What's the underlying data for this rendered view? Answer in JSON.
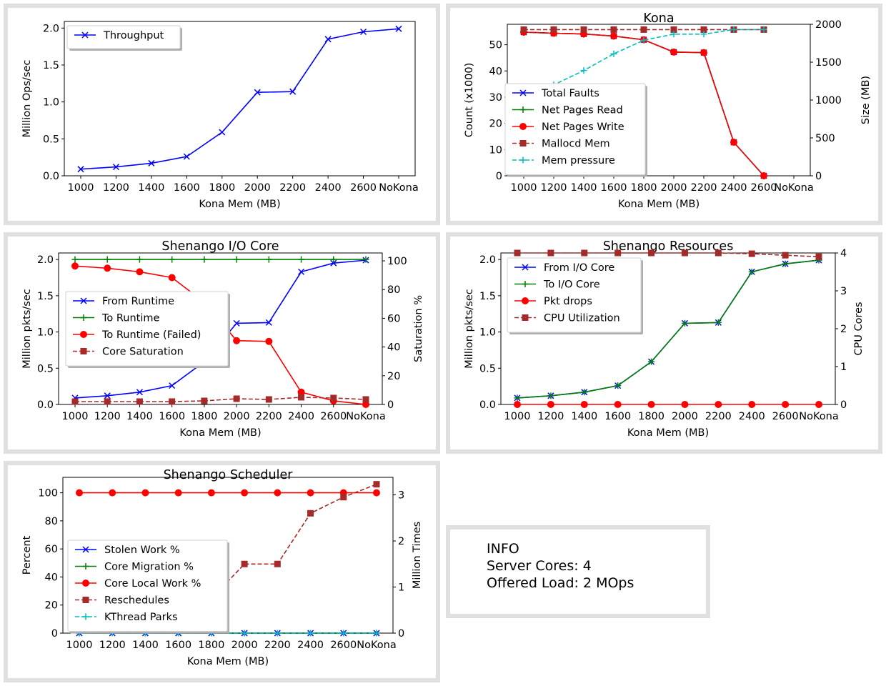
{
  "xcategories": [
    "1000",
    "1200",
    "1400",
    "1600",
    "1800",
    "2000",
    "2200",
    "2400",
    "2600",
    "NoKona"
  ],
  "chart_data": [
    {
      "id": "throughput",
      "type": "line",
      "title": "",
      "xlabel": "Kona Mem (MB)",
      "ylabel": "Million Ops/sec",
      "ylim": [
        0,
        2.09
      ],
      "yticks": [
        0,
        0.5,
        1.0,
        1.5,
        2.0
      ],
      "ytick_labels": [
        "0.0",
        "0.5",
        "1.0",
        "1.5",
        "2.0"
      ],
      "legend_position": "top-left",
      "series": [
        {
          "name": "Throughput",
          "color": "#0000ff",
          "marker": "x",
          "dash": "solid",
          "values": [
            0.09,
            0.12,
            0.17,
            0.26,
            0.59,
            1.13,
            1.14,
            1.85,
            1.95,
            1.99
          ]
        }
      ]
    },
    {
      "id": "kona",
      "type": "line",
      "title": "Kona",
      "xlabel": "Kona Mem (MB)",
      "ylabel": "Count (x1000)",
      "ylabel_right": "Size (MB)",
      "ylim": [
        0,
        57.8
      ],
      "yticks": [
        0,
        10,
        20,
        30,
        40,
        50
      ],
      "ytick_labels": [
        "0",
        "10",
        "20",
        "30",
        "40",
        "50"
      ],
      "ylim_right": [
        0,
        2000
      ],
      "yticks_right": [
        0,
        500,
        1000,
        1500,
        2000
      ],
      "ytick_labels_right": [
        "0",
        "500",
        "1000",
        "1500",
        "2000"
      ],
      "legend_position": "center-left",
      "series": [
        {
          "name": "Total Faults",
          "color": "#0000ff",
          "marker": "x",
          "dash": "solid",
          "axis": "left",
          "values": [
            54.8,
            54.4,
            54.1,
            53.3,
            51.9,
            47.2,
            47.0,
            12.8,
            0.0
          ]
        },
        {
          "name": "Net Pages Read",
          "color": "#008000",
          "marker": "+",
          "dash": "solid",
          "axis": "left",
          "values": [
            54.8,
            54.4,
            54.1,
            53.3,
            51.9,
            47.2,
            47.0,
            12.8,
            0.0
          ]
        },
        {
          "name": "Net Pages Write",
          "color": "#ff0000",
          "marker": "o",
          "dash": "solid",
          "axis": "left",
          "values": [
            54.8,
            54.4,
            54.1,
            53.3,
            51.9,
            47.2,
            47.0,
            12.8,
            0.0
          ]
        },
        {
          "name": "Mallocd Mem",
          "color": "#a52a2a",
          "marker": "s",
          "dash": "dashed",
          "axis": "right",
          "values": [
            1930,
            1930,
            1930,
            1930,
            1930,
            1930,
            1930,
            1930,
            1930
          ]
        },
        {
          "name": "Mem pressure",
          "color": "#00bfbf",
          "marker": "+",
          "dash": "dashed",
          "axis": "right",
          "values": [
            990,
            1200,
            1390,
            1610,
            1790,
            1870,
            1870,
            1930,
            1930
          ]
        }
      ]
    },
    {
      "id": "iocore",
      "type": "line",
      "title": "Shenango I/O Core",
      "xlabel": "Kona Mem (MB)",
      "ylabel": "Million pkts/sec",
      "ylabel_right": "Saturation %",
      "ylim": [
        0,
        2.09
      ],
      "yticks": [
        0,
        0.5,
        1.0,
        1.5,
        2.0
      ],
      "ytick_labels": [
        "0.0",
        "0.5",
        "1.0",
        "1.5",
        "2.0"
      ],
      "ylim_right": [
        0,
        105.5
      ],
      "yticks_right": [
        0,
        20,
        40,
        60,
        80,
        100
      ],
      "ytick_labels_right": [
        "0",
        "20",
        "40",
        "60",
        "80",
        "100"
      ],
      "legend_position": "center-left",
      "series": [
        {
          "name": "From Runtime",
          "color": "#0000ff",
          "marker": "x",
          "dash": "solid",
          "axis": "left",
          "values": [
            0.09,
            0.12,
            0.17,
            0.26,
            0.59,
            1.12,
            1.13,
            1.83,
            1.95,
            1.99
          ]
        },
        {
          "name": "To Runtime",
          "color": "#008000",
          "marker": "+",
          "dash": "solid",
          "axis": "left",
          "values": [
            2.0,
            2.0,
            2.0,
            2.0,
            2.0,
            2.0,
            2.0,
            2.0,
            2.0,
            2.0
          ]
        },
        {
          "name": "To Runtime (Failed)",
          "color": "#ff0000",
          "marker": "o",
          "dash": "solid",
          "axis": "left",
          "values": [
            1.91,
            1.88,
            1.83,
            1.75,
            1.41,
            0.88,
            0.87,
            0.17,
            0.05,
            0.0
          ]
        },
        {
          "name": "Core Saturation",
          "color": "#a52a2a",
          "marker": "s",
          "dash": "dashed",
          "axis": "right",
          "values": [
            2,
            2,
            2,
            2,
            2.5,
            4,
            3.5,
            5,
            4.5,
            3.5
          ]
        }
      ]
    },
    {
      "id": "resources",
      "type": "line",
      "title": "Shenango Resources",
      "xlabel": "Kona Mem (MB)",
      "ylabel": "Million pkts/sec",
      "ylabel_right": "CPU Cores",
      "ylim": [
        0,
        2.09
      ],
      "yticks": [
        0,
        0.5,
        1.0,
        1.5,
        2.0
      ],
      "ytick_labels": [
        "0.0",
        "0.5",
        "1.0",
        "1.5",
        "2.0"
      ],
      "ylim_right": [
        0,
        4.0
      ],
      "yticks_right": [
        0,
        1,
        2,
        3,
        4
      ],
      "ytick_labels_right": [
        "0",
        "1",
        "2",
        "3",
        "4"
      ],
      "legend_position": "top-left",
      "series": [
        {
          "name": "From I/O Core",
          "color": "#0000ff",
          "marker": "x",
          "dash": "solid",
          "axis": "left",
          "values": [
            0.09,
            0.12,
            0.17,
            0.26,
            0.59,
            1.12,
            1.13,
            1.83,
            1.94,
            1.99
          ]
        },
        {
          "name": "To I/O Core",
          "color": "#008000",
          "marker": "+",
          "dash": "solid",
          "axis": "left",
          "values": [
            0.09,
            0.12,
            0.17,
            0.26,
            0.59,
            1.12,
            1.13,
            1.83,
            1.94,
            1.99
          ]
        },
        {
          "name": "Pkt drops",
          "color": "#ff0000",
          "marker": "o",
          "dash": "solid",
          "axis": "left",
          "values": [
            0,
            0,
            0,
            0,
            0,
            0,
            0,
            0,
            0,
            0
          ]
        },
        {
          "name": "CPU Utilization",
          "color": "#a52a2a",
          "marker": "s",
          "dash": "dashed",
          "axis": "right",
          "values": [
            4.0,
            4.0,
            4.0,
            4.0,
            4.0,
            4.0,
            4.0,
            3.98,
            3.94,
            3.9
          ]
        }
      ]
    },
    {
      "id": "scheduler",
      "type": "line",
      "title": "Shenango Scheduler",
      "xlabel": "Kona Mem (MB)",
      "ylabel": "Percent",
      "ylabel_right": "Million Times",
      "ylim": [
        0,
        111
      ],
      "yticks": [
        0,
        20,
        40,
        60,
        80,
        100
      ],
      "ytick_labels": [
        "0",
        "20",
        "40",
        "60",
        "80",
        "100"
      ],
      "ylim_right": [
        0,
        3.38
      ],
      "yticks_right": [
        0,
        1,
        2,
        3
      ],
      "ytick_labels_right": [
        "0",
        "1",
        "2",
        "3"
      ],
      "legend_position": "lower-left",
      "series": [
        {
          "name": "Stolen Work %",
          "color": "#0000ff",
          "marker": "x",
          "dash": "solid",
          "axis": "left",
          "values": [
            0,
            0,
            0,
            0,
            0,
            0,
            0,
            0,
            0,
            0
          ]
        },
        {
          "name": "Core Migration %",
          "color": "#008000",
          "marker": "+",
          "dash": "solid",
          "axis": "left",
          "values": [
            0,
            0,
            0,
            0,
            0,
            0,
            0,
            0,
            0,
            0
          ]
        },
        {
          "name": "Core Local Work %",
          "color": "#ff0000",
          "marker": "o",
          "dash": "solid",
          "axis": "left",
          "values": [
            100,
            100,
            100,
            100,
            100,
            100,
            100,
            100,
            100,
            100
          ]
        },
        {
          "name": "Reschedules",
          "color": "#a52a2a",
          "marker": "s",
          "dash": "dashed",
          "axis": "right",
          "values": [
            0.1,
            0.13,
            0.19,
            0.31,
            0.75,
            1.5,
            1.5,
            2.6,
            2.95,
            3.23
          ]
        },
        {
          "name": "KThread Parks",
          "color": "#00bfbf",
          "marker": "+",
          "dash": "dashed",
          "axis": "right",
          "values": [
            0,
            0,
            0,
            0,
            0,
            0,
            0,
            0,
            0,
            0
          ]
        }
      ]
    }
  ],
  "info": {
    "heading": "INFO",
    "cores": "Server Cores: 4",
    "load": "Offered Load: 2 MOps"
  }
}
